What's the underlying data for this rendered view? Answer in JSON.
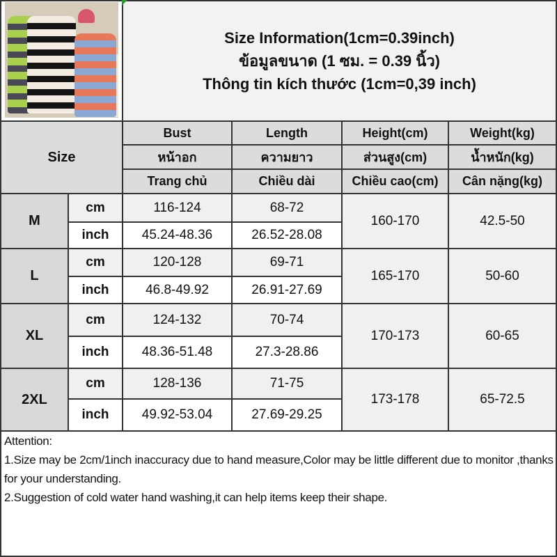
{
  "header": {
    "title_lines": [
      "Size Information(1cm=0.39inch)",
      "ข้อมูลขนาด (1 ซม. = 0.39 นิ้ว)",
      "Thông tin kích thước (1cm=0,39 inch)"
    ]
  },
  "table": {
    "size_label": "Size",
    "columns": [
      {
        "en": "Bust",
        "th": "หน้าอก",
        "vi": "Trang chủ"
      },
      {
        "en": "Length",
        "th": "ความยาว",
        "vi": "Chiều dài"
      },
      {
        "en": "Height(cm)",
        "th": "ส่วนสูง(cm)",
        "vi": "Chiều cao(cm)"
      },
      {
        "en": "Weight(kg)",
        "th": "น้ำหนัก(kg)",
        "vi": "Cân nặng(kg)"
      }
    ],
    "units": {
      "cm": "cm",
      "inch": "inch"
    },
    "rows": [
      {
        "size": "M",
        "bust_cm": "116-124",
        "length_cm": "68-72",
        "bust_inch": "45.24-48.36",
        "length_inch": "26.52-28.08",
        "height": "160-170",
        "weight": "42.5-50"
      },
      {
        "size": "L",
        "bust_cm": "120-128",
        "length_cm": "69-71",
        "bust_inch": "46.8-49.92",
        "length_inch": "26.91-27.69",
        "height": "165-170",
        "weight": "50-60"
      },
      {
        "size": "XL",
        "bust_cm": "124-132",
        "length_cm": "70-74",
        "bust_inch": "48.36-51.48",
        "length_inch": "27.3-28.86",
        "height": "170-173",
        "weight": "60-65"
      },
      {
        "size": "2XL",
        "bust_cm": "128-136",
        "length_cm": "71-75",
        "bust_inch": "49.92-53.04",
        "length_inch": "27.69-29.25",
        "height": "173-178",
        "weight": "65-72.5"
      }
    ]
  },
  "notes": {
    "heading": "Attention:",
    "items": [
      "1.Size may be 2cm/1inch inaccuracy due to hand measure,Color may be little different due to monitor ,thanks for your understanding.",
      "2.Suggestion of cold water hand washing,it can help items keep their shape."
    ]
  },
  "colors": {
    "header_gray": "#dcdcdc",
    "light_gray": "#f0f0f0",
    "border": "#333333"
  }
}
